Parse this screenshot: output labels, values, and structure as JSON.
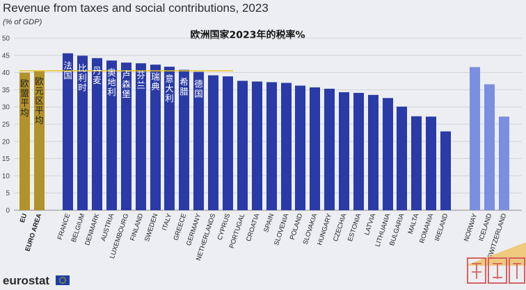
{
  "header": {
    "title": "Revenue from taxes and social contributions, 2023",
    "subtitle": "(% of GDP)",
    "cn_title": "欧洲国家2023年的税率%"
  },
  "brand": {
    "name": "eurostat",
    "flag_icon": "eu-flag-icon",
    "watermark_icon": "watermark-stamp-icon"
  },
  "colors": {
    "aggregate": "#b2922a",
    "eu_country": "#2a3aa6",
    "efta_country": "#7b8ee0",
    "reference_line": "#e9c21f",
    "grid": "#c9cbd2"
  },
  "chart_data": {
    "type": "bar",
    "title": "Revenue from taxes and social contributions, 2023",
    "ylabel": "(% of GDP)",
    "xlabel": "",
    "ylim": [
      0,
      50
    ],
    "yticks": [
      0,
      5,
      10,
      15,
      20,
      25,
      30,
      35,
      40,
      45,
      50
    ],
    "grid": true,
    "reference_line": {
      "from": "EU",
      "to": "CYPRUS",
      "value": 40.5
    },
    "categories": [
      "EU",
      "EURO AREA",
      "FRANCE",
      "BELGIUM",
      "DENMARK",
      "AUSTRIA",
      "LUXEMBOURG",
      "FINLAND",
      "SWEDEN",
      "ITALY",
      "GREECE",
      "GERMANY",
      "NETHERLANDS",
      "CYPRUS",
      "PORTUGAL",
      "CROATIA",
      "SPAIN",
      "SLOVENIA",
      "POLAND",
      "SLOVAKIA",
      "HUNGARY",
      "CZECHIA",
      "ESTONIA",
      "LATVIA",
      "LITHUANIA",
      "BULGARIA",
      "MALTA",
      "ROMANIA",
      "IRELAND",
      "NORWAY",
      "ICELAND",
      "SWITZERLAND"
    ],
    "values": [
      40.0,
      40.6,
      45.6,
      44.9,
      44.2,
      43.5,
      42.9,
      42.7,
      42.3,
      41.7,
      40.8,
      40.2,
      39.2,
      38.9,
      37.6,
      37.4,
      37.2,
      37.0,
      36.2,
      35.7,
      35.3,
      34.3,
      34.1,
      33.5,
      32.6,
      30.1,
      27.3,
      27.2,
      22.9,
      41.6,
      36.6,
      27.2
    ],
    "groups": [
      "aggregate",
      "aggregate",
      "eu",
      "eu",
      "eu",
      "eu",
      "eu",
      "eu",
      "eu",
      "eu",
      "eu",
      "eu",
      "eu",
      "eu",
      "eu",
      "eu",
      "eu",
      "eu",
      "eu",
      "eu",
      "eu",
      "eu",
      "eu",
      "eu",
      "eu",
      "eu",
      "eu",
      "eu",
      "eu",
      "efta",
      "efta",
      "efta"
    ],
    "bold_categories": [
      "EU",
      "EURO AREA"
    ],
    "chinese_labels": [
      {
        "category": "EU",
        "text": "欧盟平均",
        "style": "dark"
      },
      {
        "category": "EURO AREA",
        "text": "欧元区平均",
        "style": "dark"
      },
      {
        "category": "FRANCE",
        "text": "法国",
        "style": "light"
      },
      {
        "category": "BELGIUM",
        "text": "比利时",
        "style": "light"
      },
      {
        "category": "DENMARK",
        "text": "丹麦",
        "style": "light"
      },
      {
        "category": "AUSTRIA",
        "text": "奥地利",
        "style": "light"
      },
      {
        "category": "LUXEMBOURG",
        "text": "卢森堡",
        "style": "light"
      },
      {
        "category": "FINLAND",
        "text": "芬兰",
        "style": "light"
      },
      {
        "category": "SWEDEN",
        "text": "瑞典",
        "style": "light"
      },
      {
        "category": "ITALY",
        "text": "意大利",
        "style": "light"
      },
      {
        "category": "GREECE",
        "text": "希腊",
        "style": "light"
      },
      {
        "category": "GERMANY",
        "text": "德国",
        "style": "light"
      }
    ]
  }
}
